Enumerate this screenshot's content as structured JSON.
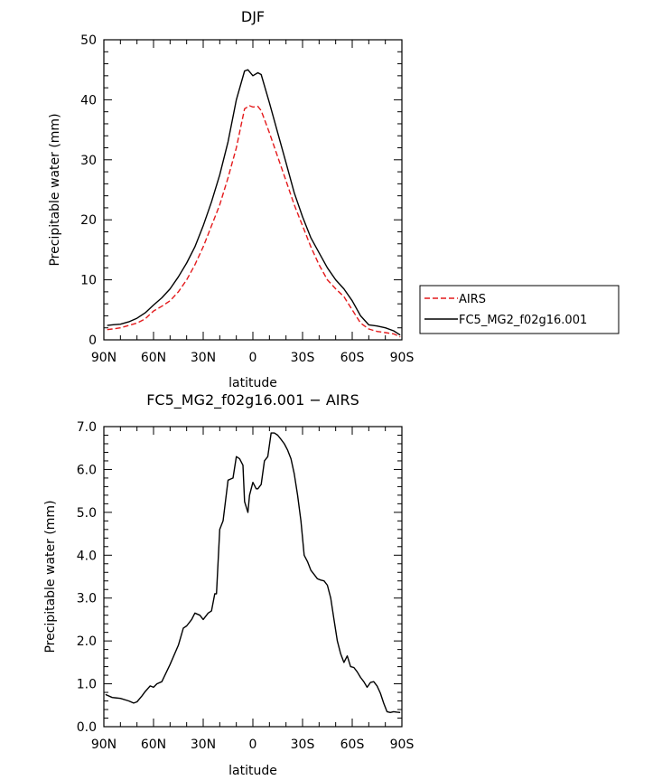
{
  "chart_data": [
    {
      "type": "line",
      "title": "DJF",
      "xlabel": "latitude",
      "ylabel": "Precipitable water (mm)",
      "xlim": [
        90,
        -90
      ],
      "ylim": [
        0,
        50
      ],
      "x_ticks": [
        90,
        60,
        30,
        0,
        -30,
        -60,
        -90
      ],
      "x_tick_labels": [
        "90N",
        "60N",
        "30N",
        "0",
        "30S",
        "60S",
        "90S"
      ],
      "y_ticks": [
        0,
        10,
        20,
        30,
        40,
        50
      ],
      "y_tick_labels": [
        "0",
        "10",
        "20",
        "30",
        "40",
        "50"
      ],
      "legend": {
        "position": "right",
        "entries": [
          "AIRS",
          "FC5_MG2_f02g16.001"
        ]
      },
      "series": [
        {
          "name": "AIRS",
          "color": "#e41a1c",
          "dash": "dashed",
          "x": [
            88,
            85,
            80,
            75,
            70,
            65,
            60,
            55,
            50,
            45,
            40,
            35,
            30,
            25,
            20,
            15,
            10,
            5,
            2,
            0,
            -3,
            -5,
            -10,
            -15,
            -20,
            -25,
            -30,
            -35,
            -40,
            -45,
            -50,
            -55,
            -60,
            -65,
            -70,
            -75,
            -80,
            -85,
            -89
          ],
          "y": [
            1.7,
            1.8,
            2.0,
            2.4,
            2.8,
            3.5,
            4.8,
            5.6,
            6.5,
            8.0,
            10.0,
            12.5,
            15.5,
            19.0,
            22.5,
            27.0,
            32.0,
            38.5,
            39.0,
            38.8,
            38.9,
            38.2,
            34.5,
            30.5,
            26.5,
            22.5,
            19.0,
            15.5,
            12.5,
            10.0,
            8.5,
            7.2,
            5.0,
            2.8,
            1.8,
            1.4,
            1.2,
            1.0,
            0.5
          ]
        },
        {
          "name": "FC5_MG2_f02g16.001",
          "color": "#000000",
          "dash": "solid",
          "x": [
            88,
            85,
            80,
            75,
            70,
            65,
            60,
            55,
            50,
            45,
            40,
            35,
            30,
            25,
            20,
            15,
            10,
            5,
            3,
            0,
            -3,
            -5,
            -10,
            -15,
            -20,
            -25,
            -30,
            -35,
            -40,
            -45,
            -50,
            -55,
            -60,
            -65,
            -70,
            -75,
            -80,
            -85,
            -89
          ],
          "y": [
            2.4,
            2.5,
            2.6,
            3.0,
            3.6,
            4.5,
            5.8,
            7.0,
            8.5,
            10.5,
            12.8,
            15.5,
            19.0,
            23.0,
            27.5,
            33.0,
            40.0,
            44.8,
            45.0,
            44.0,
            44.5,
            44.2,
            39.5,
            34.5,
            29.5,
            24.5,
            20.5,
            17.0,
            14.5,
            12.0,
            10.0,
            8.5,
            6.5,
            4.0,
            2.5,
            2.3,
            2.0,
            1.5,
            0.8
          ]
        }
      ]
    },
    {
      "type": "line",
      "title": "FC5_MG2_f02g16.001 − AIRS",
      "xlabel": "latitude",
      "ylabel": "Precipitable water (mm)",
      "xlim": [
        90,
        -90
      ],
      "ylim": [
        0,
        7
      ],
      "x_ticks": [
        90,
        60,
        30,
        0,
        -30,
        -60,
        -90
      ],
      "x_tick_labels": [
        "90N",
        "60N",
        "30N",
        "0",
        "30S",
        "60S",
        "90S"
      ],
      "y_ticks": [
        0,
        1,
        2,
        3,
        4,
        5,
        6,
        7
      ],
      "y_tick_labels": [
        "0.0",
        "1.0",
        "2.0",
        "3.0",
        "4.0",
        "5.0",
        "6.0",
        "7.0"
      ],
      "series": [
        {
          "color": "#000000",
          "dash": "solid",
          "x": [
            89,
            85,
            80,
            75,
            72,
            70,
            67,
            65,
            62,
            60,
            58,
            55,
            50,
            45,
            42,
            40,
            37,
            35,
            32,
            30,
            27,
            25,
            23,
            22,
            20,
            18,
            15,
            12,
            10,
            8,
            6,
            5,
            3,
            2,
            0,
            -2,
            -3,
            -5,
            -7,
            -9,
            -11,
            -13,
            -15,
            -17,
            -19,
            -21,
            -23,
            -25,
            -27,
            -29,
            -31,
            -33,
            -35,
            -37,
            -39,
            -41,
            -43,
            -45,
            -47,
            -49,
            -51,
            -53,
            -55,
            -57,
            -59,
            -61,
            -63,
            -65,
            -67,
            -69,
            -71,
            -73,
            -75,
            -77,
            -79,
            -81,
            -83,
            -85,
            -87,
            -89
          ],
          "y": [
            0.75,
            0.68,
            0.66,
            0.6,
            0.55,
            0.58,
            0.72,
            0.82,
            0.95,
            0.92,
            1.0,
            1.05,
            1.45,
            1.9,
            2.3,
            2.35,
            2.5,
            2.65,
            2.6,
            2.5,
            2.65,
            2.7,
            3.1,
            3.1,
            4.6,
            4.8,
            5.75,
            5.8,
            6.3,
            6.25,
            6.1,
            5.25,
            5.0,
            5.4,
            5.7,
            5.55,
            5.55,
            5.65,
            6.2,
            6.3,
            6.85,
            6.85,
            6.8,
            6.7,
            6.6,
            6.45,
            6.25,
            5.9,
            5.4,
            4.8,
            4.0,
            3.85,
            3.65,
            3.55,
            3.45,
            3.42,
            3.4,
            3.3,
            3.0,
            2.5,
            2.0,
            1.7,
            1.5,
            1.65,
            1.4,
            1.38,
            1.28,
            1.15,
            1.05,
            0.92,
            1.03,
            1.05,
            0.95,
            0.78,
            0.55,
            0.35,
            0.33,
            0.35,
            0.34,
            0.33
          ]
        }
      ]
    }
  ]
}
